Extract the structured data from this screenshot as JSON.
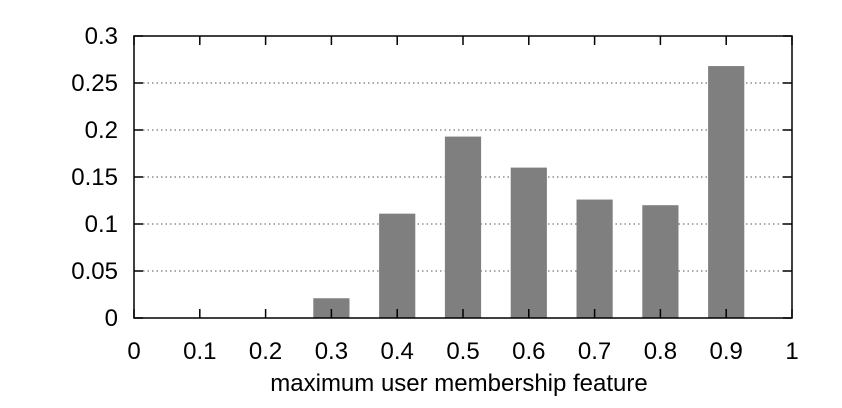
{
  "chart_data": {
    "type": "bar",
    "title": "",
    "xlabel": "maximum user membership feature",
    "ylabel": "",
    "x": [
      0.1,
      0.2,
      0.3,
      0.4,
      0.5,
      0.6,
      0.7,
      0.8,
      0.9
    ],
    "values": [
      0,
      0,
      0.021,
      0.111,
      0.193,
      0.16,
      0.126,
      0.12,
      0.268
    ],
    "xlim": [
      0,
      1
    ],
    "ylim": [
      0,
      0.3
    ],
    "xticks": [
      "0",
      "0.1",
      "0.2",
      "0.3",
      "0.4",
      "0.5",
      "0.6",
      "0.7",
      "0.8",
      "0.9",
      "1"
    ],
    "yticks": [
      "0",
      "0.05",
      "0.1",
      "0.15",
      "0.2",
      "0.25",
      "0.3"
    ],
    "grid": "horizontal dotted",
    "bar_color": "#7f7f7f",
    "frame_color": "#000000"
  }
}
